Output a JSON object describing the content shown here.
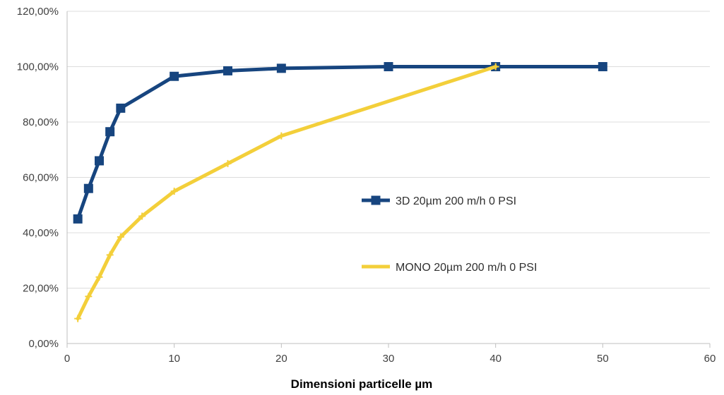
{
  "chart_data": {
    "type": "line",
    "xlabel": "Dimensioni particelle µm",
    "ylabel": "",
    "xlim": [
      0,
      60
    ],
    "ylim": [
      0,
      120
    ],
    "x_ticks": [
      0,
      10,
      20,
      30,
      40,
      50,
      60
    ],
    "x_tick_labels": [
      "0",
      "10",
      "20",
      "30",
      "40",
      "50",
      "60"
    ],
    "y_ticks": [
      0,
      20,
      40,
      60,
      80,
      100,
      120
    ],
    "y_tick_labels": [
      "0,00%",
      "20,00%",
      "40,00%",
      "60,00%",
      "80,00%",
      "100,00%",
      "120,00%"
    ],
    "grid": "horizontal",
    "legend_position": "center-right",
    "series": [
      {
        "name": "3D 20µm  200 m/h  0 PSI",
        "color": "#17457f",
        "marker": "square",
        "x": [
          1,
          2,
          3,
          4,
          5,
          10,
          15,
          20,
          30,
          40,
          50
        ],
        "values": [
          45,
          56,
          66,
          76.5,
          85,
          96.5,
          98.5,
          99.4,
          100,
          100,
          100
        ]
      },
      {
        "name": "MONO  20µm 200 m/h  0 PSI",
        "color": "#f3cf3a",
        "marker": "plus",
        "x": [
          1,
          2,
          3,
          4,
          5,
          7,
          10,
          15,
          20,
          40
        ],
        "values": [
          9,
          17,
          24,
          32,
          38.5,
          46,
          55,
          65,
          75,
          100
        ]
      }
    ]
  }
}
